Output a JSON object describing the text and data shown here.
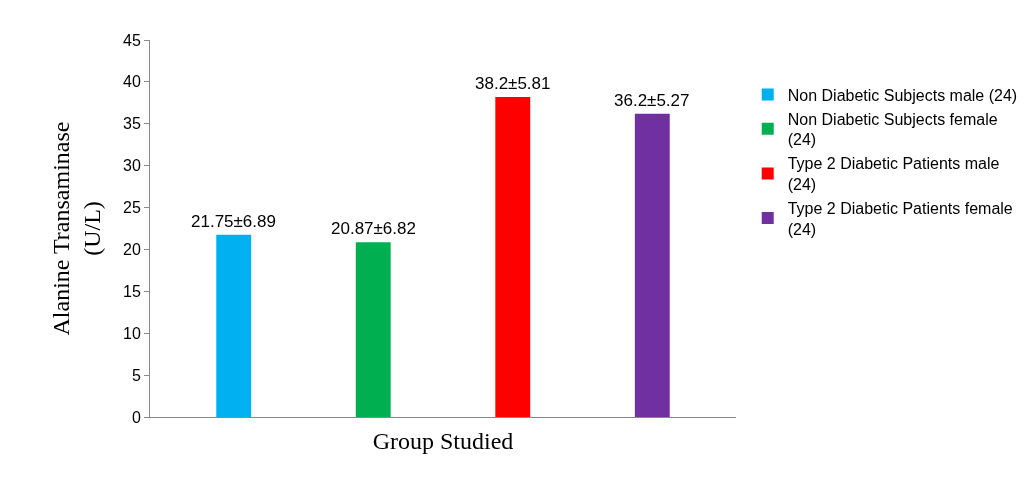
{
  "chart_data": {
    "type": "bar",
    "xlabel": "Group Studied",
    "ylabel": "Alanine Transaminase (U/L)",
    "categories": [
      null,
      null,
      null,
      null
    ],
    "series": [
      {
        "name": "Non Diabetic Subjects male (24)",
        "color": "#00b0f0",
        "values": [
          21.75,
          null,
          null,
          null
        ],
        "value_labels": [
          "21.75±6.89",
          null,
          null,
          null
        ]
      },
      {
        "name": "Non Diabetic Subjects female (24)",
        "color": "#00b050",
        "values": [
          null,
          20.87,
          null,
          null
        ],
        "value_labels": [
          null,
          "20.87±6.82",
          null,
          null
        ]
      },
      {
        "name": "Type 2 Diabetic Patients male (24)",
        "color": "#ff0000",
        "values": [
          null,
          null,
          38.2,
          null
        ],
        "value_labels": [
          null,
          null,
          "38.2±5.81",
          null
        ]
      },
      {
        "name": "Type 2 Diabetic Patients female (24)",
        "color": "#7030a0",
        "values": [
          null,
          null,
          null,
          36.2
        ],
        "value_labels": [
          null,
          null,
          null,
          "36.2±5.27"
        ]
      }
    ],
    "ylim": [
      0,
      45
    ],
    "yticks": [
      0,
      5,
      10,
      15,
      20,
      25,
      30,
      35,
      40,
      45
    ],
    "legend": "right",
    "tick_labels": "y"
  }
}
